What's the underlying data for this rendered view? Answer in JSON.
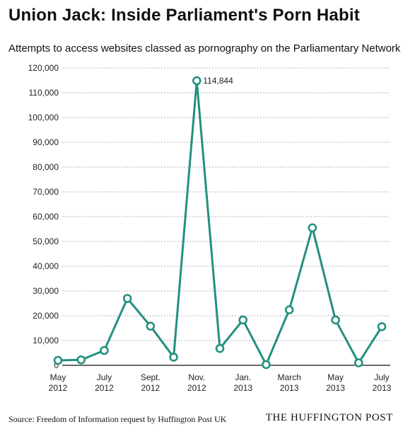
{
  "title": "Union Jack: Inside Parliament's Porn Habit",
  "subtitle": "Attempts to access websites classed as pornography on the Parliamentary Network",
  "source": "Source: Freedom of Information request by Huffington Post UK",
  "brand": "THE HUFFINGTON POST",
  "colors": {
    "line": "#23907f",
    "grid": "#9a9a9a",
    "axis": "#111111"
  },
  "chart_data": {
    "type": "line",
    "title": "",
    "xlabel": "",
    "ylabel": "",
    "ylim": [
      0,
      120000
    ],
    "yticks": [
      "0",
      "10,000",
      "20,000",
      "30,000",
      "40,000",
      "50,000",
      "60,000",
      "70,000",
      "80,000",
      "90,000",
      "100,000",
      "110,000",
      "120,000"
    ],
    "x": [
      "May 2012",
      "June 2012",
      "July 2012",
      "Aug. 2012",
      "Sept. 2012",
      "Oct. 2012",
      "Nov. 2012",
      "Dec. 2012",
      "Jan. 2013",
      "Feb. 2013",
      "March 2013",
      "April 2013",
      "May 2013",
      "June 2013",
      "July 2013"
    ],
    "xtick_labels": [
      {
        "index": 0,
        "line1": "May",
        "line2": "2012"
      },
      {
        "index": 2,
        "line1": "July",
        "line2": "2012"
      },
      {
        "index": 4,
        "line1": "Sept.",
        "line2": "2012"
      },
      {
        "index": 6,
        "line1": "Nov.",
        "line2": "2012"
      },
      {
        "index": 8,
        "line1": "Jan.",
        "line2": "2013"
      },
      {
        "index": 10,
        "line1": "March",
        "line2": "2013"
      },
      {
        "index": 12,
        "line1": "May",
        "line2": "2013"
      },
      {
        "index": 14,
        "line1": "July",
        "line2": "2013"
      }
    ],
    "series": [
      {
        "values": [
          2000,
          2200,
          6000,
          27000,
          15800,
          3300,
          114844,
          6800,
          18300,
          300,
          22400,
          55500,
          18300,
          1000,
          15600
        ]
      }
    ],
    "annotations": [
      {
        "index": 6,
        "text": "114,844"
      }
    ],
    "grid": "horizontal dotted"
  }
}
